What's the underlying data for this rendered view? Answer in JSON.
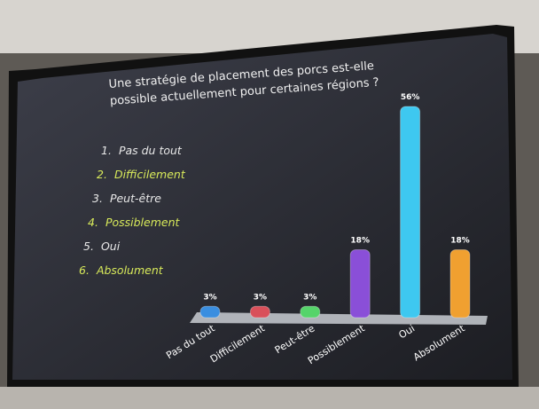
{
  "chart_data": {
    "type": "bar",
    "title": "Une stratégie de placement des porcs est-elle possible actuellement pour certaines régions ?",
    "options": [
      {
        "number": "1.",
        "label": "Pas du tout"
      },
      {
        "number": "2.",
        "label": "Difficilement"
      },
      {
        "number": "3.",
        "label": "Peut-être"
      },
      {
        "number": "4.",
        "label": "Possiblement"
      },
      {
        "number": "5.",
        "label": "Oui"
      },
      {
        "number": "6.",
        "label": "Absolument"
      }
    ],
    "option_colors": [
      "#e8e8e8",
      "#d8ea5a"
    ],
    "categories": [
      "Pas du tout",
      "Difficilement",
      "Peut-être",
      "Possiblement",
      "Oui",
      "Absolument"
    ],
    "values": [
      3,
      3,
      3,
      18,
      56,
      18
    ],
    "value_labels": [
      "3%",
      "3%",
      "3%",
      "18%",
      "56%",
      "18%"
    ],
    "colors": [
      "#3a8ee0",
      "#d9505a",
      "#55d46a",
      "#8a4fd8",
      "#3ec8f0",
      "#f0a030"
    ]
  }
}
